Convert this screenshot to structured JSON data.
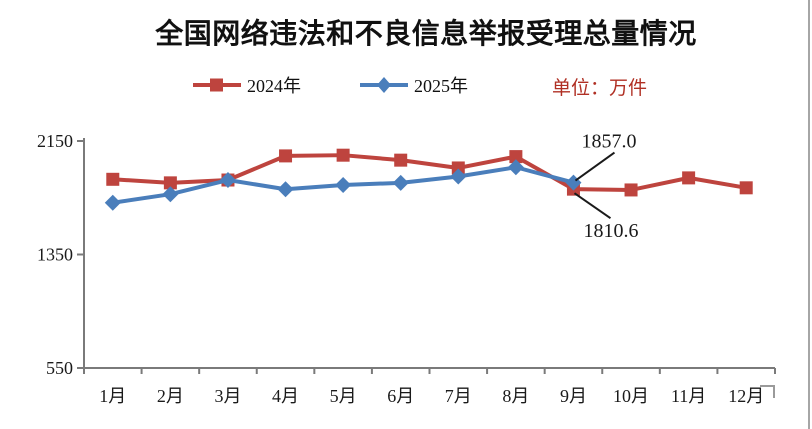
{
  "title": "全国网络违法和不良信息举报受理总量情况",
  "legend": {
    "unit_label": "单位：万件",
    "unit_color": "#b03024",
    "items": [
      {
        "label": "2024年",
        "marker": "square",
        "color": "#be443e"
      },
      {
        "label": "2025年",
        "marker": "diamond",
        "color": "#4a7ebb"
      }
    ]
  },
  "chart_data": {
    "type": "line",
    "title": "全国网络违法和不良信息举报受理总量情况",
    "unit": "万件",
    "categories": [
      "1月",
      "2月",
      "3月",
      "4月",
      "5月",
      "6月",
      "7月",
      "8月",
      "9月",
      "10月",
      "11月",
      "12月"
    ],
    "series": [
      {
        "name": "2024年",
        "marker": "square",
        "color": "#be443e",
        "values": [
          1880,
          1855,
          1875,
          2045,
          2050,
          2015,
          1960,
          2040,
          1810.6,
          1805,
          1890,
          1820
        ]
      },
      {
        "name": "2025年",
        "marker": "diamond",
        "color": "#4a7ebb",
        "values": [
          1715,
          1775,
          1875,
          1810,
          1840,
          1855,
          1900,
          1965,
          1857.0,
          null,
          null,
          null
        ]
      }
    ],
    "y_ticks": [
      550,
      1350,
      2150
    ],
    "ylim": [
      550,
      2150
    ],
    "xlabel": "",
    "ylabel": "",
    "grid": false,
    "legend_position": "top",
    "annotations": [
      {
        "label": "1857.0",
        "series": "2025年",
        "category": "9月",
        "value": 1857.0,
        "position": "above"
      },
      {
        "label": "1810.6",
        "series": "2024年",
        "category": "9月",
        "value": 1810.6,
        "position": "below"
      }
    ]
  }
}
